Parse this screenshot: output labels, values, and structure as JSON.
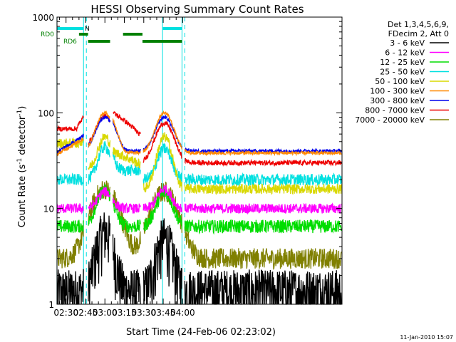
{
  "chart_data": {
    "type": "line",
    "title": "HESSI Observing Summary Count Rates",
    "xlabel": "Start Time (24-Feb-06 02:23:02)",
    "ylabel": "Count Rate (s⁻¹ detector⁻¹)",
    "ylabel_parts": {
      "base": "Count Rate (s",
      "sup1": "-1",
      "mid": " detector",
      "sup2": "-1",
      "end": ")"
    },
    "footer_date": "11-Jan-2010 15:07",
    "xlim_minutes": [
      23.03,
      243.0
    ],
    "ylim": [
      1,
      1000
    ],
    "yscale": "log",
    "x_ticks": [
      {
        "m": 30,
        "label": "02:30"
      },
      {
        "m": 45,
        "label": "02:45"
      },
      {
        "m": 60,
        "label": "03:00"
      },
      {
        "m": 75,
        "label": "03:15"
      },
      {
        "m": 90,
        "label": "03:30"
      },
      {
        "m": 105,
        "label": "03:45"
      },
      {
        "m": 120,
        "label": "04:00"
      }
    ],
    "y_ticks": [
      {
        "v": 1,
        "label": "1"
      },
      {
        "v": 10,
        "label": "10"
      },
      {
        "v": 100,
        "label": "100"
      },
      {
        "v": 1000,
        "label": "1000"
      }
    ],
    "legend": {
      "header": [
        "Det 1,3,4,5,6,9,",
        "FDecim 2, Att 0"
      ],
      "entries": [
        {
          "label": "3 - 6 keV",
          "color": "#000000"
        },
        {
          "label": "6 - 12 keV",
          "color": "#ff00ff"
        },
        {
          "label": "12 - 25 keV",
          "color": "#00dd00"
        },
        {
          "label": "25 - 50 keV",
          "color": "#00e0e0"
        },
        {
          "label": "50 - 100 keV",
          "color": "#d8d800"
        },
        {
          "label": "100 - 300 keV",
          "color": "#ff8800"
        },
        {
          "label": "300 - 800 keV",
          "color": "#0000ee"
        },
        {
          "label": "800 - 7000 keV",
          "color": "#ee0000"
        },
        {
          "label": "7000 - 20000 keV",
          "color": "#808000"
        }
      ]
    },
    "flags": {
      "rd0_label": "RD0",
      "rd6_label": "RD6",
      "n_label": "N",
      "night_color": "#00e0e0",
      "decim_color": "#008000",
      "night_solid_m": [
        23.0,
        43.5,
        104.5,
        119.5
      ],
      "night_dashed_m": [
        43.5,
        119.5
      ],
      "night_bars_m": [
        [
          23.0,
          43.5
        ],
        [
          104.5,
          119.5
        ]
      ],
      "rd0_bars_m": [
        [
          40.0,
          47.0
        ],
        [
          74.0,
          89.0
        ]
      ],
      "rd6_bars_m": [
        [
          47.0,
          64.0
        ],
        [
          89.0,
          119.5
        ]
      ]
    },
    "series": [
      {
        "name": "3 - 6 keV",
        "color": "#000000",
        "key": "e1"
      },
      {
        "name": "6 - 12 keV",
        "color": "#ff00ff",
        "key": "e2"
      },
      {
        "name": "12 - 25 keV",
        "color": "#00dd00",
        "key": "e3"
      },
      {
        "name": "25 - 50 keV",
        "color": "#00e0e0",
        "key": "e4"
      },
      {
        "name": "50 - 100 keV",
        "color": "#d8d800",
        "key": "e5"
      },
      {
        "name": "100 - 300 keV",
        "color": "#ff8800",
        "key": "e6"
      },
      {
        "name": "300 - 800 keV",
        "color": "#0000ee",
        "key": "e7"
      },
      {
        "name": "800 - 7000 keV",
        "color": "#ee0000",
        "key": "e8"
      },
      {
        "name": "7000 - 20000 keV",
        "color": "#808000",
        "key": "e9"
      }
    ]
  }
}
